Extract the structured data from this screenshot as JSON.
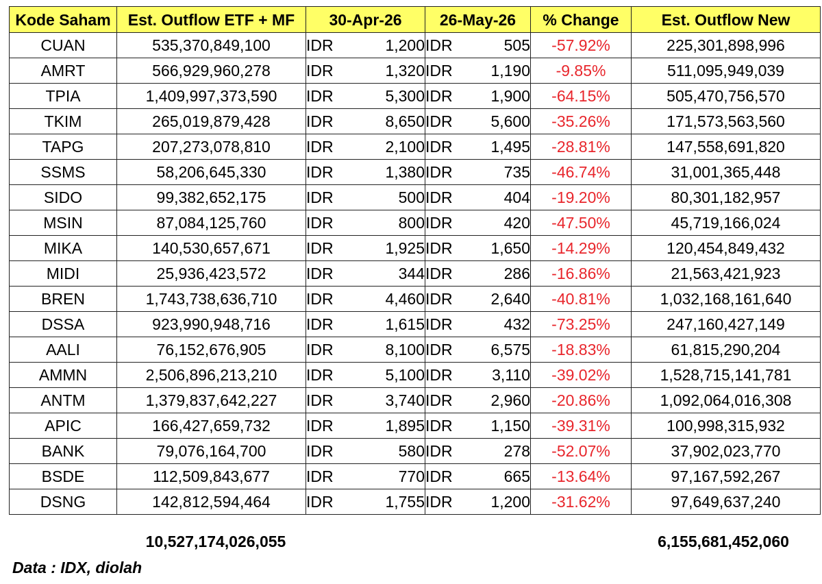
{
  "colors": {
    "header_bg": "#ffff66",
    "negative_text": "#e8262c",
    "border": "#222222"
  },
  "table": {
    "headers": [
      "Kode Saham",
      "Est. Outflow ETF + MF",
      "30-Apr-26",
      "26-May-26",
      "% Change",
      "Est. Outflow New"
    ],
    "currency": "IDR",
    "rows": [
      {
        "code": "CUAN",
        "outflow": "535,370,849,100",
        "apr": "1,200",
        "may": "505",
        "change": "-57.92%",
        "new": "225,301,898,996"
      },
      {
        "code": "AMRT",
        "outflow": "566,929,960,278",
        "apr": "1,320",
        "may": "1,190",
        "change": "-9.85%",
        "new": "511,095,949,039"
      },
      {
        "code": "TPIA",
        "outflow": "1,409,997,373,590",
        "apr": "5,300",
        "may": "1,900",
        "change": "-64.15%",
        "new": "505,470,756,570"
      },
      {
        "code": "TKIM",
        "outflow": "265,019,879,428",
        "apr": "8,650",
        "may": "5,600",
        "change": "-35.26%",
        "new": "171,573,563,560"
      },
      {
        "code": "TAPG",
        "outflow": "207,273,078,810",
        "apr": "2,100",
        "may": "1,495",
        "change": "-28.81%",
        "new": "147,558,691,820"
      },
      {
        "code": "SSMS",
        "outflow": "58,206,645,330",
        "apr": "1,380",
        "may": "735",
        "change": "-46.74%",
        "new": "31,001,365,448"
      },
      {
        "code": "SIDO",
        "outflow": "99,382,652,175",
        "apr": "500",
        "may": "404",
        "change": "-19.20%",
        "new": "80,301,182,957"
      },
      {
        "code": "MSIN",
        "outflow": "87,084,125,760",
        "apr": "800",
        "may": "420",
        "change": "-47.50%",
        "new": "45,719,166,024"
      },
      {
        "code": "MIKA",
        "outflow": "140,530,657,671",
        "apr": "1,925",
        "may": "1,650",
        "change": "-14.29%",
        "new": "120,454,849,432"
      },
      {
        "code": "MIDI",
        "outflow": "25,936,423,572",
        "apr": "344",
        "may": "286",
        "change": "-16.86%",
        "new": "21,563,421,923"
      },
      {
        "code": "BREN",
        "outflow": "1,743,738,636,710",
        "apr": "4,460",
        "may": "2,640",
        "change": "-40.81%",
        "new": "1,032,168,161,640"
      },
      {
        "code": "DSSA",
        "outflow": "923,990,948,716",
        "apr": "1,615",
        "may": "432",
        "change": "-73.25%",
        "new": "247,160,427,149"
      },
      {
        "code": "AALI",
        "outflow": "76,152,676,905",
        "apr": "8,100",
        "may": "6,575",
        "change": "-18.83%",
        "new": "61,815,290,204"
      },
      {
        "code": "AMMN",
        "outflow": "2,506,896,213,210",
        "apr": "5,100",
        "may": "3,110",
        "change": "-39.02%",
        "new": "1,528,715,141,781"
      },
      {
        "code": "ANTM",
        "outflow": "1,379,837,642,227",
        "apr": "3,740",
        "may": "2,960",
        "change": "-20.86%",
        "new": "1,092,064,016,308"
      },
      {
        "code": "APIC",
        "outflow": "166,427,659,732",
        "apr": "1,895",
        "may": "1,150",
        "change": "-39.31%",
        "new": "100,998,315,932"
      },
      {
        "code": "BANK",
        "outflow": "79,076,164,700",
        "apr": "580",
        "may": "278",
        "change": "-52.07%",
        "new": "37,902,023,770"
      },
      {
        "code": "BSDE",
        "outflow": "112,509,843,677",
        "apr": "770",
        "may": "665",
        "change": "-13.64%",
        "new": "97,167,592,267"
      },
      {
        "code": "DSNG",
        "outflow": "142,812,594,464",
        "apr": "1,755",
        "may": "1,200",
        "change": "-31.62%",
        "new": "97,649,637,240"
      }
    ],
    "totals": {
      "outflow": "10,527,174,026,055",
      "new": "6,155,681,452,060"
    }
  },
  "source_note": "Data : IDX, diolah"
}
